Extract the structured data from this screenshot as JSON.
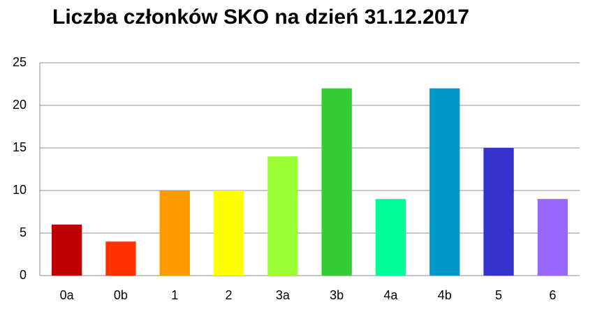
{
  "chart_data": {
    "type": "bar",
    "title": "Liczba członków SKO na dzień 31.12.2017",
    "categories": [
      "0a",
      "0b",
      "1",
      "2",
      "3a",
      "3b",
      "4a",
      "4b",
      "5",
      "6"
    ],
    "values": [
      6,
      4,
      10,
      10,
      14,
      22,
      9,
      22,
      15,
      9
    ],
    "colors": [
      "#c00000",
      "#ff3300",
      "#ff9900",
      "#ffff00",
      "#99ff33",
      "#33cc33",
      "#00ff99",
      "#0099cc",
      "#3333cc",
      "#9966ff"
    ],
    "ylim": [
      0,
      25
    ],
    "yticks": [
      0,
      5,
      10,
      15,
      20,
      25
    ],
    "grid": true
  }
}
